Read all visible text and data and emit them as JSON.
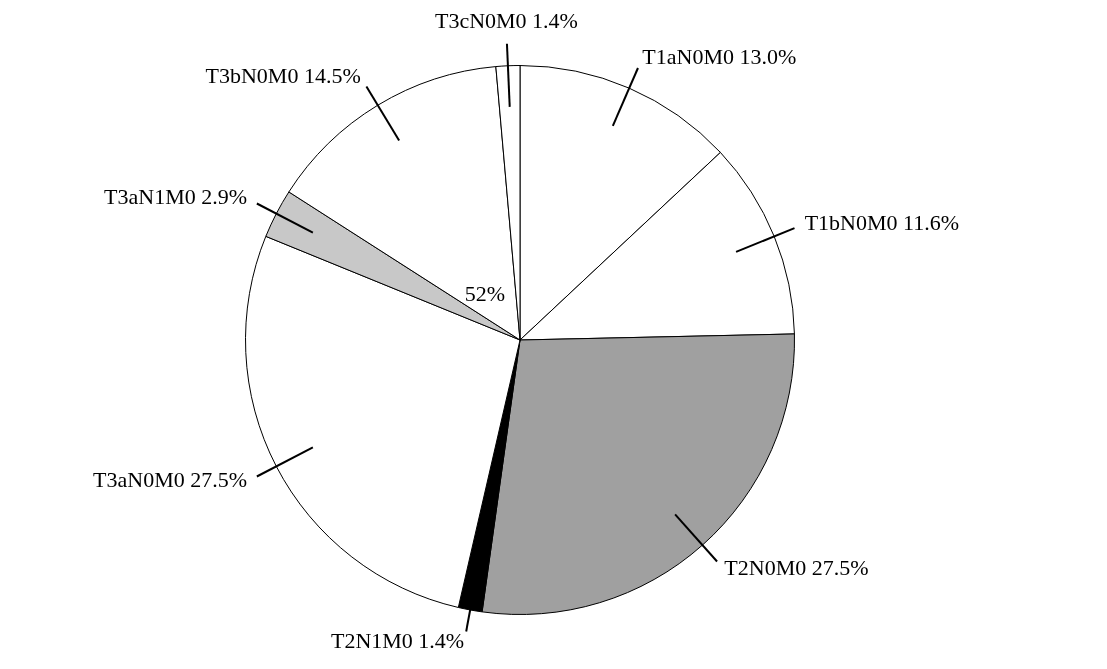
{
  "chart_data": {
    "type": "pie",
    "categories": [
      "T1aN0M0",
      "T1bN0M0",
      "T2N0M0",
      "T2N1M0",
      "T3aN0M0",
      "T3aN1M0",
      "T3bN0M0",
      "T3cN0M0"
    ],
    "values": [
      13.0,
      11.6,
      27.5,
      1.4,
      27.5,
      2.9,
      14.5,
      1.4
    ],
    "value_labels": [
      "13.0%",
      "11.6%",
      "27.5%",
      "1.4%",
      "27.5%",
      "2.9%",
      "14.5%",
      "1.4%"
    ],
    "colors": [
      "#ffffff",
      "#ffffff",
      "#a0a0a0",
      "#000000",
      "#ffffff",
      "#c8c8c8",
      "#ffffff",
      "#ffffff"
    ],
    "annotations": [
      "52%"
    ],
    "legend": false
  }
}
